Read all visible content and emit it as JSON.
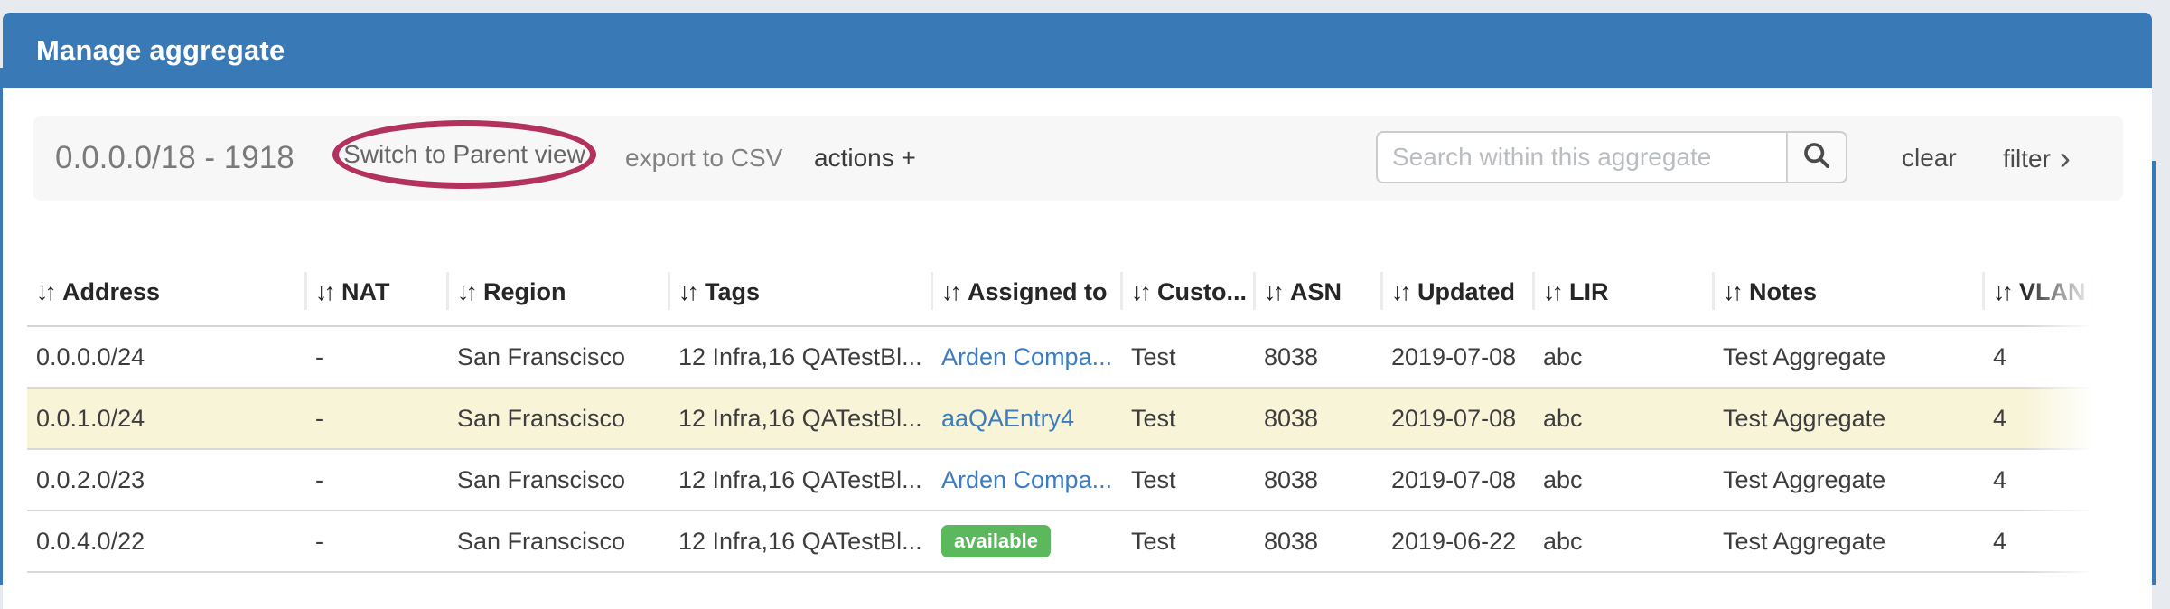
{
  "window": {
    "title": "Manage aggregate"
  },
  "toolbar": {
    "aggregate_label": "0.0.0.0/18 - 1918",
    "switch_parent_label": "Switch to Parent view",
    "export_csv_label": "export to CSV",
    "actions_label": "actions +",
    "search_placeholder": "Search within this aggregate",
    "clear_label": "clear",
    "filter_label": "filter",
    "filter_chevron": "›"
  },
  "table": {
    "sort_icon": "↓↑",
    "columns": [
      "Address",
      "NAT",
      "Region",
      "Tags",
      "Assigned to",
      "Custo...",
      "ASN",
      "Updated",
      "LIR",
      "Notes",
      "VLAN"
    ],
    "rows": [
      {
        "address": "0.0.0.0/24",
        "nat": "-",
        "region": "San Franscisco",
        "tags": "12 Infra,16 QATestBl...",
        "assigned": {
          "kind": "link",
          "text": "Arden Compa..."
        },
        "customer": "Test",
        "asn": "8038",
        "updated": "2019-07-08",
        "lir": "abc",
        "notes": "Test Aggregate",
        "vlan": "4",
        "highlighted": false
      },
      {
        "address": "0.0.1.0/24",
        "nat": "-",
        "region": "San Franscisco",
        "tags": "12 Infra,16 QATestBl...",
        "assigned": {
          "kind": "link",
          "text": "aaQAEntry4"
        },
        "customer": "Test",
        "asn": "8038",
        "updated": "2019-07-08",
        "lir": "abc",
        "notes": "Test Aggregate",
        "vlan": "4",
        "highlighted": true
      },
      {
        "address": "0.0.2.0/23",
        "nat": "-",
        "region": "San Franscisco",
        "tags": "12 Infra,16 QATestBl...",
        "assigned": {
          "kind": "link",
          "text": "Arden Compa..."
        },
        "customer": "Test",
        "asn": "8038",
        "updated": "2019-07-08",
        "lir": "abc",
        "notes": "Test Aggregate",
        "vlan": "4",
        "highlighted": false
      },
      {
        "address": "0.0.4.0/22",
        "nat": "-",
        "region": "San Franscisco",
        "tags": "12 Infra,16 QATestBl...",
        "assigned": {
          "kind": "badge",
          "text": "available"
        },
        "customer": "Test",
        "asn": "8038",
        "updated": "2019-06-22",
        "lir": "abc",
        "notes": "Test Aggregate",
        "vlan": "4",
        "highlighted": false
      }
    ]
  },
  "colors": {
    "header_blue": "#3879b6",
    "highlight_row": "#f8f4d8",
    "badge_green": "#5cb85c",
    "annotation_ellipse": "#b3315e",
    "link_blue": "#3b7dbf"
  }
}
